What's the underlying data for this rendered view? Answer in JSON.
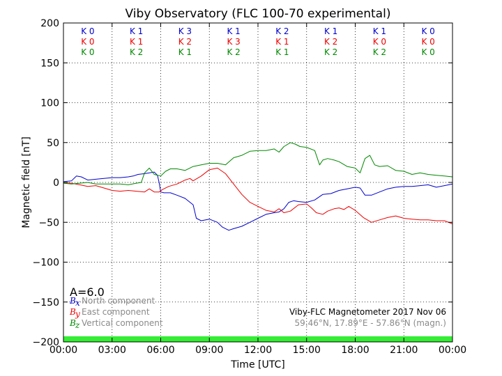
{
  "chart_data": {
    "type": "line",
    "title": "Viby Observatory (FLC 100-70 experimental)",
    "xlabel": "Time [UTC]",
    "ylabel": "Magnetic field [nT]",
    "xlim": [
      0,
      24
    ],
    "ylim": [
      -200,
      200
    ],
    "x_ticks": [
      {
        "value": 0,
        "label": "00:00"
      },
      {
        "value": 3,
        "label": "03:00"
      },
      {
        "value": 6,
        "label": "06:00"
      },
      {
        "value": 9,
        "label": "09:00"
      },
      {
        "value": 12,
        "label": "12:00"
      },
      {
        "value": 15,
        "label": "15:00"
      },
      {
        "value": 18,
        "label": "18:00"
      },
      {
        "value": 21,
        "label": "21:00"
      },
      {
        "value": 24,
        "label": "00:00"
      }
    ],
    "y_ticks": [
      {
        "value": 200,
        "label": "200"
      },
      {
        "value": 150,
        "label": "150"
      },
      {
        "value": 100,
        "label": "100"
      },
      {
        "value": 50,
        "label": "50"
      },
      {
        "value": 0,
        "label": "0"
      },
      {
        "value": -50,
        "label": "−50"
      },
      {
        "value": -100,
        "label": "−100"
      },
      {
        "value": -150,
        "label": "−150"
      },
      {
        "value": -200,
        "label": "−200"
      }
    ],
    "grid": true,
    "k_indices": {
      "rows": [
        {
          "color": "#0000cc",
          "values": [
            "K 0",
            "K 1",
            "K 3",
            "K 1",
            "K 2",
            "K 1",
            "K 1",
            "K 0"
          ]
        },
        {
          "color": "#ee0000",
          "values": [
            "K 0",
            "K 1",
            "K 2",
            "K 3",
            "K 1",
            "K 2",
            "K 0",
            "K 0"
          ]
        },
        {
          "color": "#008800",
          "values": [
            "K 0",
            "K 2",
            "K 1",
            "K 2",
            "K 1",
            "K 2",
            "K 2",
            "K 0"
          ]
        }
      ]
    },
    "a_index": "A=6.0",
    "activity_band": {
      "color": "#33ee33",
      "from": -200,
      "to": -193
    },
    "legend": {
      "placement": "lower-left",
      "entries": [
        {
          "symbol": "B",
          "subscript": "x",
          "text": "North component",
          "color": "#0000cc"
        },
        {
          "symbol": "B",
          "subscript": "y",
          "text": "East component",
          "color": "#ee0000"
        },
        {
          "symbol": "B",
          "subscript": "z",
          "text": "Vertical component",
          "color": "#008800"
        }
      ]
    },
    "info": {
      "line1": "Viby-FLC Magnetometer 2017 Nov 06",
      "line2": "59.46°N, 17.89°E - 57.86°N (magn.)"
    },
    "series": [
      {
        "name": "North component",
        "color": "#0000cc",
        "x": [
          0,
          0.5,
          0.8,
          1.1,
          1.5,
          2.0,
          2.5,
          3.0,
          3.5,
          4.0,
          4.3,
          4.6,
          5.0,
          5.3,
          5.6,
          5.8,
          5.9,
          6.0,
          6.2,
          6.6,
          7.0,
          7.5,
          8.0,
          8.2,
          8.5,
          9.0,
          9.5,
          9.8,
          10.0,
          10.2,
          10.5,
          11.0,
          11.5,
          12.0,
          12.5,
          13.0,
          13.3,
          13.6,
          13.9,
          14.2,
          14.5,
          15.0,
          15.5,
          16.0,
          16.5,
          17.0,
          17.5,
          18.0,
          18.3,
          18.6,
          19.0,
          19.5,
          20.0,
          20.5,
          21.0,
          21.5,
          22.0,
          22.5,
          23.0,
          23.5,
          24.0
        ],
        "y": [
          1,
          2,
          8,
          7,
          3,
          4,
          5,
          6,
          6,
          7,
          8,
          10,
          11,
          12,
          13,
          9,
          0,
          -12,
          -13,
          -13,
          -16,
          -20,
          -28,
          -45,
          -48,
          -46,
          -50,
          -56,
          -58,
          -60,
          -58,
          -55,
          -50,
          -45,
          -40,
          -38,
          -37,
          -33,
          -25,
          -23,
          -24,
          -25,
          -22,
          -15,
          -14,
          -10,
          -8,
          -6,
          -7,
          -16,
          -16,
          -12,
          -8,
          -6,
          -5,
          -5,
          -4,
          -3,
          -6,
          -4,
          -2
        ]
      },
      {
        "name": "East component",
        "color": "#ee0000",
        "x": [
          0,
          0.5,
          1.0,
          1.5,
          2.0,
          2.5,
          3.0,
          3.5,
          4.0,
          4.5,
          5.0,
          5.3,
          5.6,
          5.9,
          6.1,
          6.5,
          7.0,
          7.5,
          7.8,
          8.0,
          8.5,
          9.0,
          9.5,
          10.0,
          10.5,
          11.0,
          11.5,
          12.0,
          12.5,
          13.0,
          13.3,
          13.6,
          14.0,
          14.5,
          15.0,
          15.3,
          15.6,
          16.0,
          16.3,
          16.7,
          17.0,
          17.3,
          17.6,
          18.0,
          18.5,
          19.0,
          19.5,
          20.0,
          20.5,
          21.0,
          21.5,
          22.0,
          22.5,
          23.0,
          23.5,
          24.0
        ],
        "y": [
          0,
          -1,
          -3,
          -5,
          -4,
          -7,
          -10,
          -11,
          -10,
          -11,
          -12,
          -8,
          -12,
          -12,
          -9,
          -5,
          -2,
          3,
          5,
          2,
          8,
          16,
          18,
          11,
          -2,
          -15,
          -25,
          -30,
          -35,
          -37,
          -33,
          -38,
          -36,
          -28,
          -27,
          -32,
          -38,
          -40,
          -36,
          -33,
          -32,
          -34,
          -30,
          -35,
          -44,
          -50,
          -47,
          -44,
          -42,
          -45,
          -46,
          -47,
          -47,
          -48,
          -48,
          -52
        ]
      },
      {
        "name": "Vertical component",
        "color": "#008800",
        "x": [
          0,
          0.5,
          1.0,
          1.5,
          2.0,
          2.5,
          3.0,
          3.5,
          4.0,
          4.5,
          4.8,
          5.0,
          5.3,
          5.6,
          6.0,
          6.3,
          6.6,
          7.0,
          7.5,
          8.0,
          8.5,
          9.0,
          9.5,
          10.0,
          10.5,
          11.0,
          11.5,
          12.0,
          12.5,
          13.0,
          13.3,
          13.6,
          14.0,
          14.3,
          14.6,
          15.0,
          15.5,
          15.8,
          16.0,
          16.3,
          16.7,
          17.0,
          17.5,
          18.0,
          18.3,
          18.6,
          18.9,
          19.2,
          19.5,
          20.0,
          20.5,
          21.0,
          21.5,
          22.0,
          22.5,
          23.0,
          23.5,
          24.0
        ],
        "y": [
          -1,
          -2,
          -1,
          0,
          -2,
          -2,
          -2,
          -2,
          -3,
          -1,
          0,
          12,
          18,
          10,
          8,
          14,
          17,
          17,
          15,
          20,
          22,
          24,
          24,
          22,
          31,
          34,
          39,
          40,
          40,
          42,
          38,
          45,
          50,
          48,
          45,
          44,
          40,
          22,
          28,
          30,
          28,
          26,
          20,
          18,
          12,
          30,
          34,
          22,
          20,
          21,
          15,
          14,
          10,
          12,
          10,
          9,
          8,
          7
        ]
      }
    ]
  }
}
